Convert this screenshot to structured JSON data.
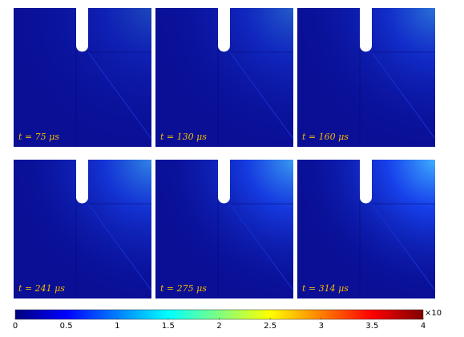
{
  "panels": [
    {
      "label": "t = 75 μs"
    },
    {
      "label": "t = 130 μs"
    },
    {
      "label": "t = 160 μs"
    },
    {
      "label": "t = 241 μs"
    },
    {
      "label": "t = 275 μs"
    },
    {
      "label": "t = 314 μs"
    }
  ],
  "colorbar": {
    "lim": [
      0,
      4
    ],
    "ticks": [
      0,
      0.5,
      1,
      1.5,
      2,
      2.5,
      3,
      3.5,
      4
    ],
    "multiplier": "×10"
  }
}
